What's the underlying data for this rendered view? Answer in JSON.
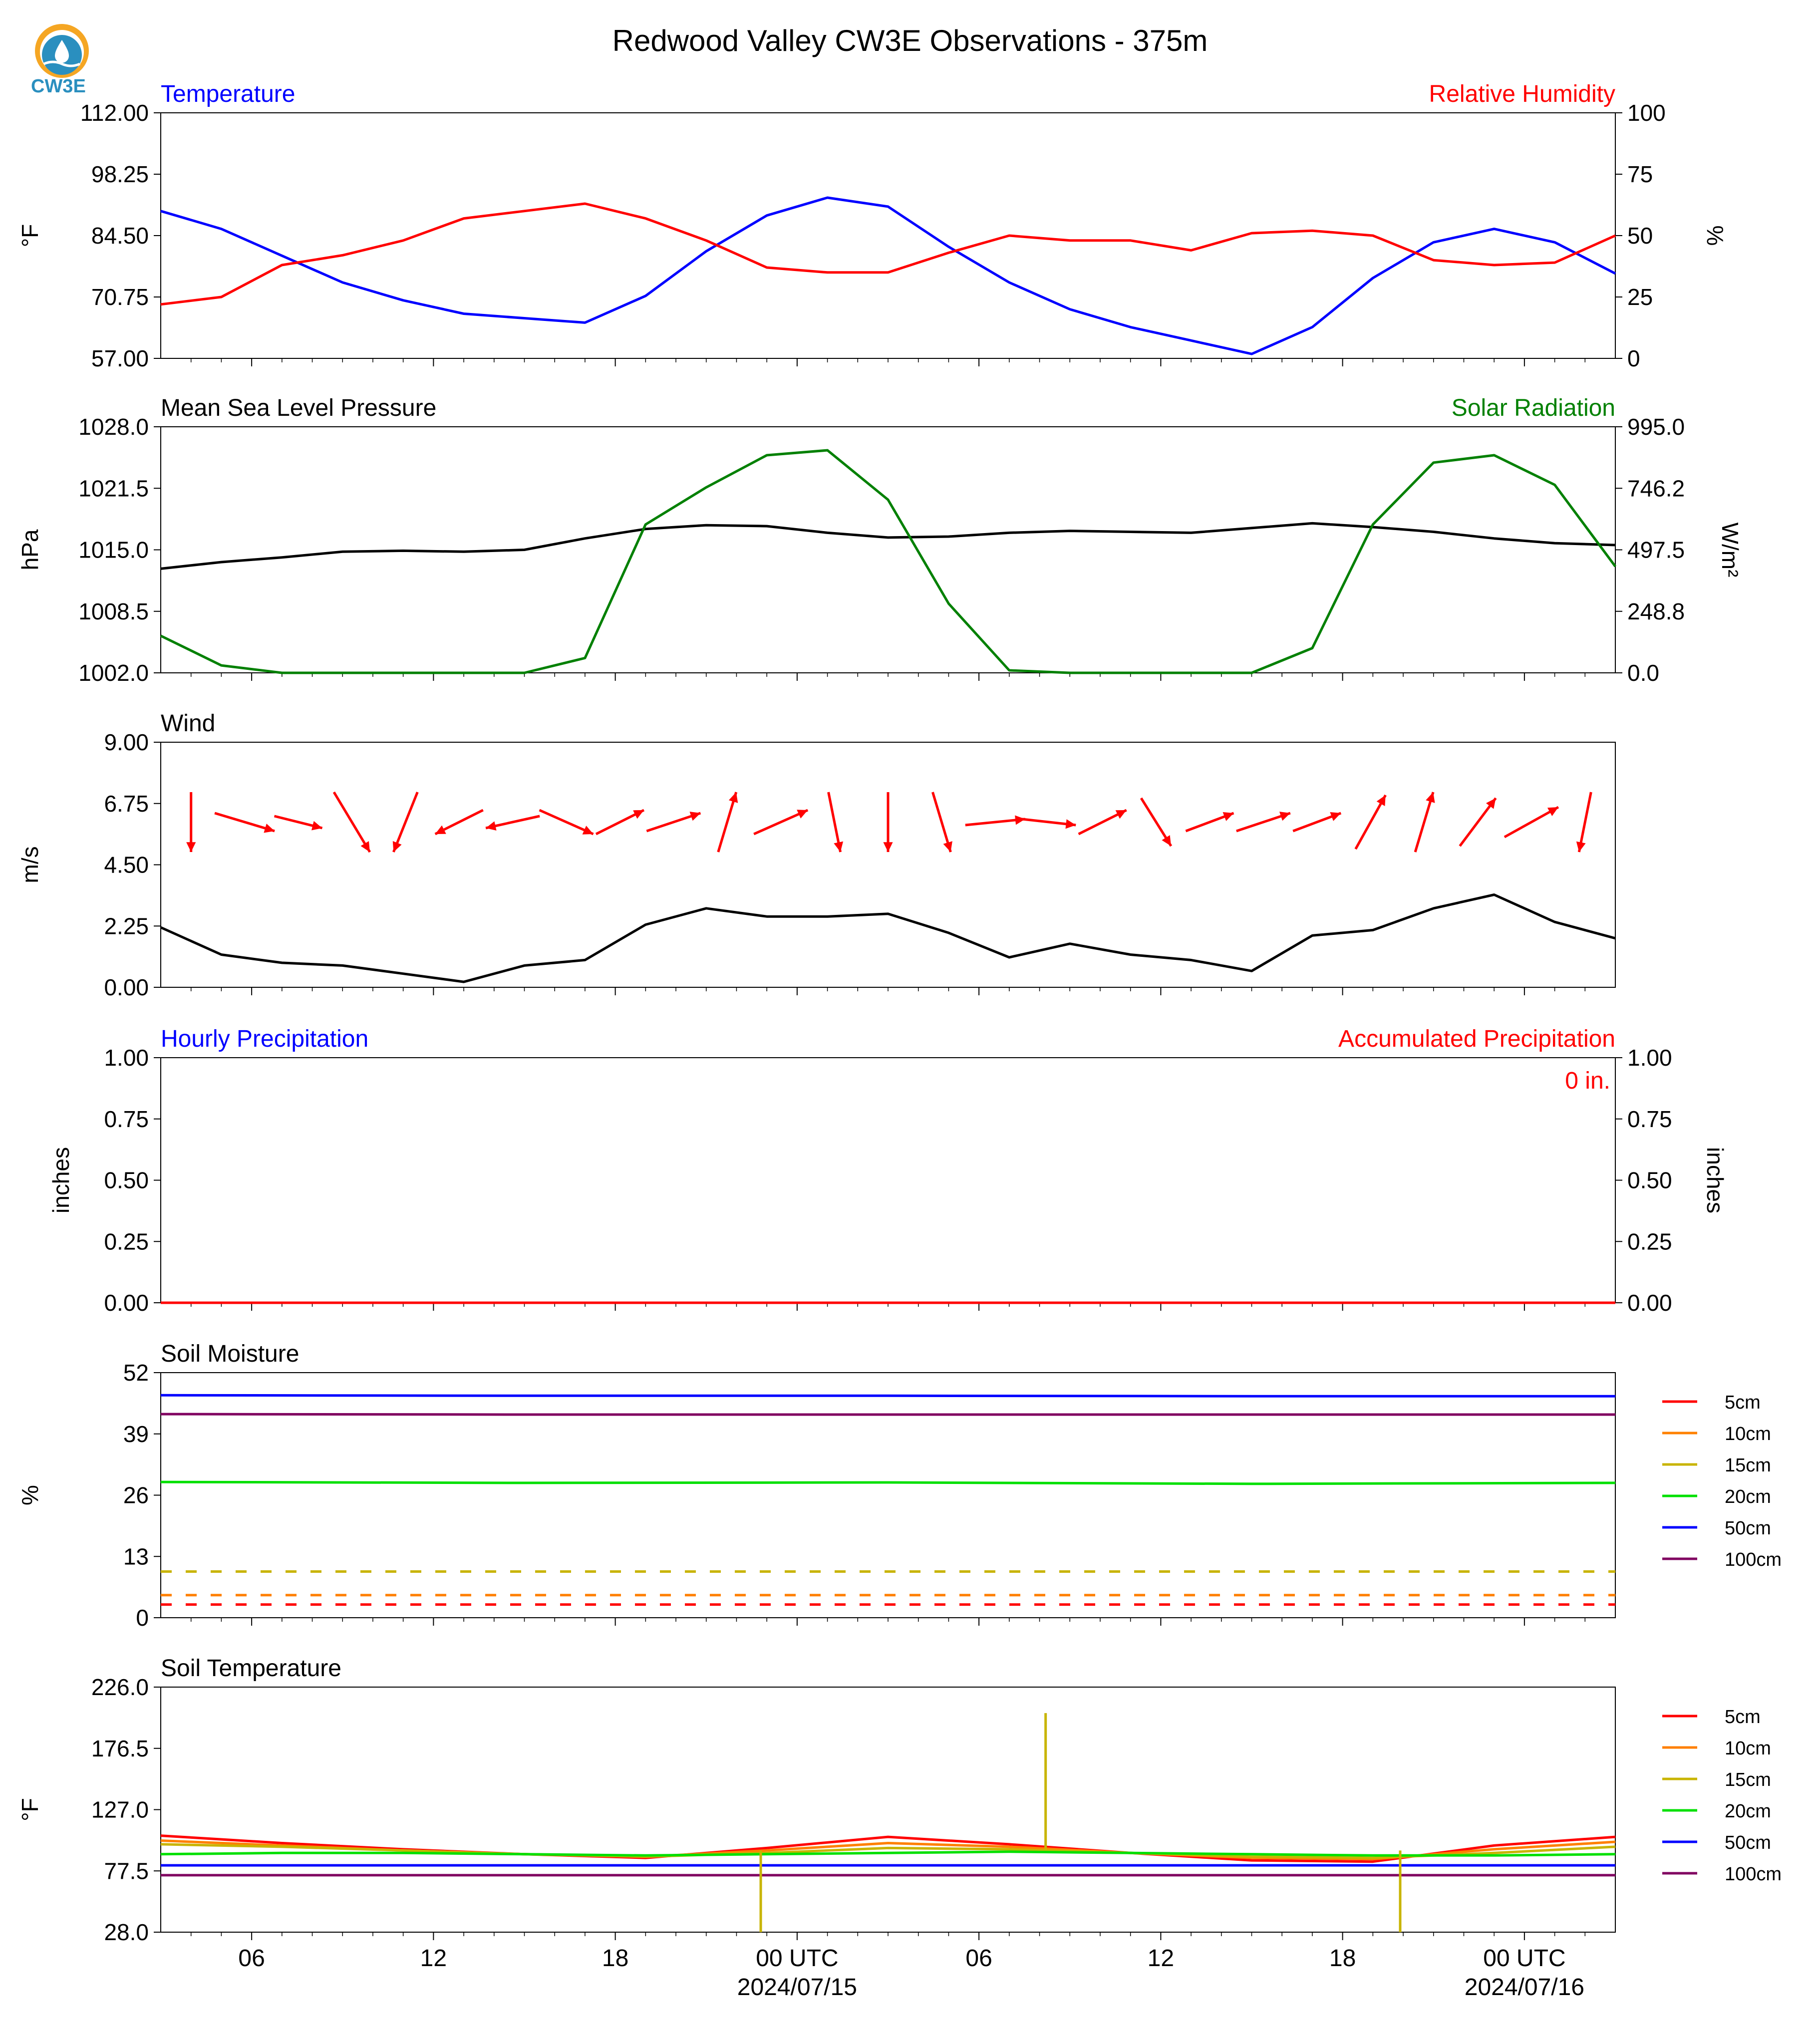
{
  "title": "Redwood Valley CW3E Observations - 375m",
  "logo": {
    "text": "CW3E",
    "color": "#2a8fbf",
    "accent": "#f5a623"
  },
  "x_ticks": [
    "06",
    "12",
    "18",
    "00 UTC",
    "06",
    "12",
    "18",
    "00 UTC"
  ],
  "x_dates": [
    "2024/07/15",
    "2024/07/16"
  ],
  "colors": {
    "temperature": "#0000ff",
    "humidity": "#ff0000",
    "pressure": "#000000",
    "solar": "#008000",
    "wind": "#000000",
    "arrow": "#ff0000"
  },
  "chart_data": [
    {
      "type": "line",
      "panel": "temperature_humidity",
      "left_title": "Temperature",
      "right_title": "Relative Humidity",
      "ylabel": "°F",
      "ylabel_right": "%",
      "yticks": [
        "57.00",
        "70.75",
        "84.50",
        "98.25",
        "112.00"
      ],
      "yticks_right": [
        "0",
        "25",
        "50",
        "75",
        "100"
      ],
      "ylim": [
        57,
        112
      ],
      "ylim_right": [
        0,
        100
      ],
      "x_hours": [
        0,
        2,
        4,
        6,
        8,
        10,
        12,
        14,
        16,
        18,
        20,
        22,
        24,
        26,
        28,
        30,
        32,
        34,
        36,
        38,
        40,
        42,
        44,
        46,
        48
      ],
      "series": [
        {
          "name": "Temperature",
          "color": "#0000ff",
          "values": [
            90,
            86,
            80,
            74,
            70,
            67,
            66,
            65,
            71,
            81,
            89,
            93,
            91,
            82,
            74,
            68,
            64,
            61,
            58,
            64,
            75,
            83,
            86,
            83,
            76
          ]
        },
        {
          "name": "Relative Humidity",
          "color": "#ff0000",
          "values": [
            22,
            25,
            38,
            42,
            48,
            57,
            60,
            63,
            57,
            48,
            37,
            35,
            35,
            43,
            50,
            48,
            48,
            44,
            51,
            52,
            50,
            40,
            38,
            39,
            50
          ]
        }
      ]
    },
    {
      "type": "line",
      "panel": "pressure_solar",
      "left_title": "Mean Sea Level Pressure",
      "right_title": "Solar Radiation",
      "ylabel": "hPa",
      "ylabel_right": "W/m²",
      "yticks": [
        "1002.0",
        "1008.5",
        "1015.0",
        "1021.5",
        "1028.0"
      ],
      "yticks_right": [
        "0.0",
        "248.8",
        "497.5",
        "746.2",
        "995.0"
      ],
      "ylim": [
        1002,
        1028
      ],
      "ylim_right": [
        0,
        995
      ],
      "x_hours": [
        0,
        2,
        4,
        6,
        8,
        10,
        12,
        14,
        16,
        18,
        20,
        22,
        24,
        26,
        28,
        30,
        32,
        34,
        36,
        38,
        40,
        42,
        44,
        46,
        48
      ],
      "series": [
        {
          "name": "Mean Sea Level Pressure",
          "color": "#000000",
          "values": [
            1013.0,
            1013.7,
            1014.2,
            1014.8,
            1014.9,
            1014.8,
            1015.0,
            1016.2,
            1017.2,
            1017.6,
            1017.5,
            1016.8,
            1016.3,
            1016.4,
            1016.8,
            1017.0,
            1016.9,
            1016.8,
            1017.3,
            1017.8,
            1017.4,
            1016.9,
            1016.2,
            1015.7,
            1015.5
          ]
        },
        {
          "name": "Solar Radiation",
          "color": "#008000",
          "values": [
            150,
            30,
            0,
            0,
            0,
            0,
            0,
            60,
            600,
            750,
            880,
            900,
            700,
            280,
            10,
            0,
            0,
            0,
            0,
            100,
            600,
            850,
            880,
            760,
            430
          ]
        }
      ]
    },
    {
      "type": "line",
      "panel": "wind",
      "left_title": "Wind",
      "ylabel": "m/s",
      "yticks": [
        "0.00",
        "2.25",
        "4.50",
        "6.75",
        "9.00"
      ],
      "ylim": [
        0,
        9
      ],
      "x_hours": [
        0,
        2,
        4,
        6,
        8,
        10,
        12,
        14,
        16,
        18,
        20,
        22,
        24,
        26,
        28,
        30,
        32,
        34,
        36,
        38,
        40,
        42,
        44,
        46,
        48
      ],
      "series": [
        {
          "name": "Wind",
          "color": "#000000",
          "values": [
            2.2,
            1.2,
            0.9,
            0.8,
            0.5,
            0.2,
            0.8,
            1.0,
            2.3,
            2.9,
            2.6,
            2.6,
            2.7,
            2.0,
            1.1,
            1.6,
            1.2,
            1.0,
            0.6,
            1.9,
            2.1,
            2.9,
            3.4,
            2.4,
            1.8
          ]
        }
      ],
      "arrows_u_v": [
        [
          0.0,
          -1.0
        ],
        [
          1.0,
          -0.3
        ],
        [
          0.8,
          -0.2
        ],
        [
          0.6,
          -1.0
        ],
        [
          -0.4,
          -1.0
        ],
        [
          -0.8,
          -0.4
        ],
        [
          -0.9,
          -0.2
        ],
        [
          0.9,
          -0.4
        ],
        [
          0.8,
          0.4
        ],
        [
          0.9,
          0.3
        ],
        [
          0.3,
          1.0
        ],
        [
          0.9,
          0.4
        ],
        [
          0.2,
          -1.0
        ],
        [
          0.0,
          -1.0
        ],
        [
          0.3,
          -1.0
        ],
        [
          1.0,
          0.1
        ],
        [
          0.9,
          -0.1
        ],
        [
          0.8,
          0.4
        ],
        [
          0.5,
          -0.8
        ],
        [
          0.8,
          0.3
        ],
        [
          0.9,
          0.3
        ],
        [
          0.8,
          0.3
        ],
        [
          0.5,
          0.9
        ],
        [
          0.3,
          1.0
        ],
        [
          0.6,
          0.8
        ],
        [
          0.9,
          0.5
        ],
        [
          -0.2,
          -1.0
        ]
      ]
    },
    {
      "type": "line",
      "panel": "precipitation",
      "left_title": "Hourly Precipitation",
      "right_title": "Accumulated Precipitation",
      "ylabel": "inches",
      "ylabel_right": "inches",
      "yticks": [
        "0.00",
        "0.25",
        "0.50",
        "0.75",
        "1.00"
      ],
      "yticks_right": [
        "0.00",
        "0.25",
        "0.50",
        "0.75",
        "1.00"
      ],
      "ylim": [
        0,
        1
      ],
      "annotation": "0 in.",
      "x_hours": [
        0,
        48
      ],
      "series": [
        {
          "name": "Hourly Precipitation",
          "color": "#0000ff",
          "values": [
            0,
            0
          ]
        },
        {
          "name": "Accumulated Precipitation",
          "color": "#ff0000",
          "values": [
            0,
            0
          ]
        }
      ]
    },
    {
      "type": "line",
      "panel": "soil_moisture",
      "left_title": "Soil Moisture",
      "ylabel": "%",
      "yticks": [
        "0",
        "13",
        "26",
        "39",
        "52"
      ],
      "ylim": [
        0,
        52
      ],
      "legend": [
        "5cm",
        "10cm",
        "15cm",
        "20cm",
        "50cm",
        "100cm"
      ],
      "x_hours": [
        0,
        12,
        24,
        36,
        48
      ],
      "series": [
        {
          "name": "5cm",
          "color": "#ff0000",
          "values": [
            2.8,
            2.8,
            2.8,
            2.8,
            2.8
          ],
          "dashed": true
        },
        {
          "name": "10cm",
          "color": "#ff8000",
          "values": [
            4.8,
            4.8,
            4.8,
            4.8,
            4.8
          ],
          "dashed": true
        },
        {
          "name": "15cm",
          "color": "#c8b400",
          "values": [
            9.8,
            9.8,
            9.8,
            9.8,
            9.8
          ],
          "dashed": true
        },
        {
          "name": "20cm",
          "color": "#00e000",
          "values": [
            28.8,
            28.6,
            28.7,
            28.4,
            28.6
          ]
        },
        {
          "name": "50cm",
          "color": "#0000ff",
          "values": [
            47.2,
            47.1,
            47.1,
            47.0,
            47.0
          ]
        },
        {
          "name": "100cm",
          "color": "#800060",
          "values": [
            43.2,
            43.1,
            43.1,
            43.1,
            43.1
          ]
        }
      ]
    },
    {
      "type": "line",
      "panel": "soil_temperature",
      "left_title": "Soil Temperature",
      "ylabel": "°F",
      "yticks": [
        "28.0",
        "77.5",
        "127.0",
        "176.5",
        "226.0"
      ],
      "ylim": [
        28,
        226
      ],
      "legend": [
        "5cm",
        "10cm",
        "15cm",
        "20cm",
        "50cm",
        "100cm"
      ],
      "x_hours": [
        0,
        4,
        8,
        12,
        16,
        20,
        24,
        28,
        32,
        36,
        40,
        44,
        48
      ],
      "series": [
        {
          "name": "5cm",
          "color": "#ff0000",
          "values": [
            106,
            100,
            95,
            91,
            88,
            96,
            105,
            99,
            92,
            86,
            85,
            98,
            105
          ]
        },
        {
          "name": "10cm",
          "color": "#ff8000",
          "values": [
            102,
            98,
            94,
            91,
            89,
            94,
            100,
            97,
            92,
            88,
            87,
            95,
            101
          ]
        },
        {
          "name": "15cm",
          "color": "#c8b400",
          "values": [
            99,
            97,
            94,
            91,
            89,
            92,
            96,
            95,
            92,
            89,
            88,
            92,
            97
          ]
        },
        {
          "name": "20cm",
          "color": "#00e000",
          "values": [
            91,
            92,
            92,
            91,
            90,
            91,
            92,
            93,
            92,
            91,
            90,
            90,
            91
          ]
        },
        {
          "name": "50cm",
          "color": "#0000ff",
          "values": [
            82,
            82,
            82,
            82,
            82,
            82,
            82,
            82,
            82,
            82,
            82,
            82,
            82
          ]
        },
        {
          "name": "100cm",
          "color": "#800060",
          "values": [
            74,
            74,
            74,
            74,
            74,
            74,
            74,
            74,
            74,
            74,
            74,
            74,
            74
          ]
        }
      ],
      "spikes": [
        {
          "series": "15cm",
          "hour": 19.8,
          "value": 28
        },
        {
          "series": "15cm",
          "hour": 29.2,
          "value": 205
        },
        {
          "series": "15cm",
          "hour": 40.9,
          "value": 28
        }
      ]
    }
  ]
}
